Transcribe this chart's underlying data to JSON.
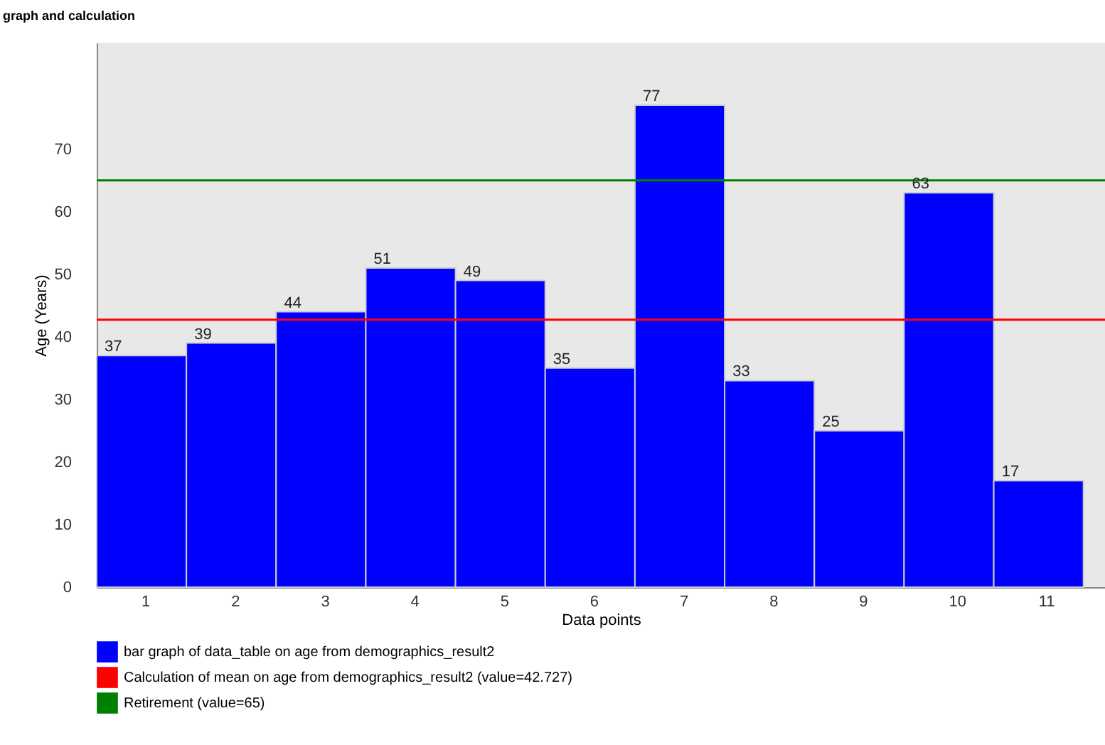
{
  "chart_data": {
    "type": "bar",
    "title": "graph and calculation",
    "xlabel": "Data points",
    "ylabel": "Age (Years)",
    "categories": [
      "1",
      "2",
      "3",
      "4",
      "5",
      "6",
      "7",
      "8",
      "9",
      "10",
      "11"
    ],
    "series": [
      {
        "name": "bar graph of data_table on age from demographics_result2",
        "color": "#0000ff",
        "values": [
          37,
          39,
          44,
          51,
          49,
          35,
          77,
          33,
          25,
          63,
          17
        ]
      }
    ],
    "data_labels": true,
    "ylim": [
      0,
      87
    ],
    "yticks": [
      0,
      10,
      20,
      30,
      40,
      50,
      60,
      70
    ],
    "ref_lines": [
      {
        "axis": "y",
        "value": 42.727,
        "label": "Calculation of mean on age from demographics_result2 (value=42.727)",
        "color": "#ff0000"
      },
      {
        "axis": "y",
        "value": 65,
        "label": "Retirement (value=65)",
        "color": "#008000"
      }
    ],
    "grid": false,
    "legend": "bottom left"
  }
}
